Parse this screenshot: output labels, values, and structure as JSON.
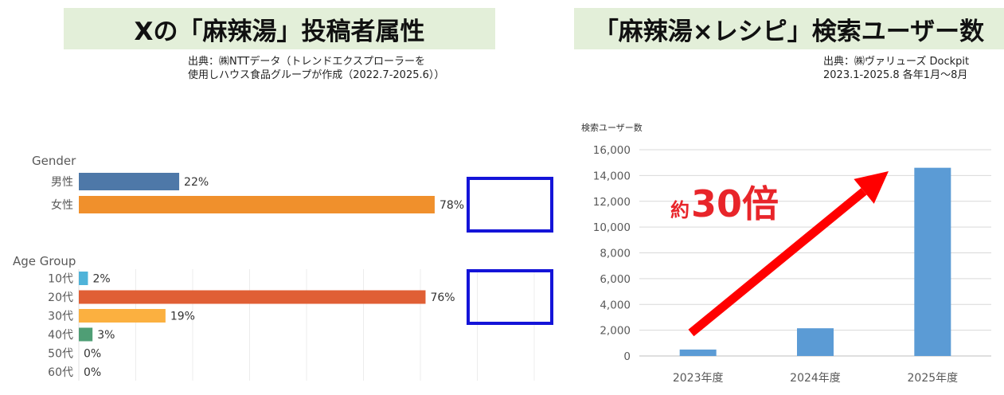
{
  "left": {
    "title": "Xの「麻辣湯」投稿者属性",
    "source_lines": [
      "出典：㈱NTTデータ（トレンドエクスプローラーを",
      "使用しハウス食品グループが作成（2022.7-2025.6））"
    ]
  },
  "right": {
    "title": "「麻辣湯×レシピ」検索ユーザー数",
    "source_lines": [
      "出典：㈱ヴァリューズ Dockpit",
      "2023.1-2025.8 各年1月〜8月"
    ],
    "annotation_prefix": "約",
    "annotation_main": "30倍"
  },
  "chart_data": [
    {
      "type": "bar",
      "orientation": "horizontal",
      "title": "Gender",
      "categories": [
        "男性",
        "女性"
      ],
      "values": [
        22,
        78
      ],
      "value_labels": [
        "22%",
        "78%"
      ],
      "colors": [
        "#4e78a8",
        "#f0902c"
      ],
      "highlight_category": "女性",
      "xlim": [
        0,
        100
      ]
    },
    {
      "type": "bar",
      "orientation": "horizontal",
      "title": "Age Group",
      "categories": [
        "10代",
        "20代",
        "30代",
        "40代",
        "50代",
        "60代"
      ],
      "values": [
        2,
        76,
        19,
        3,
        0,
        0
      ],
      "value_labels": [
        "2%",
        "76%",
        "19%",
        "3%",
        "0%",
        "0%"
      ],
      "colors": [
        "#4fb3d9",
        "#e05f35",
        "#fbb040",
        "#4f9e75",
        "#888888",
        "#888888"
      ],
      "highlight_category": "20代",
      "xlim": [
        0,
        100
      ]
    },
    {
      "type": "bar",
      "orientation": "vertical",
      "title": "",
      "ylabel": "検索ユーザー数",
      "categories": [
        "2023年度",
        "2024年度",
        "2025年度"
      ],
      "values": [
        500,
        2150,
        14600
      ],
      "ylim": [
        0,
        16000
      ],
      "yticks": [
        0,
        2000,
        4000,
        6000,
        8000,
        10000,
        12000,
        14000,
        16000
      ],
      "ytick_labels": [
        "0",
        "2,000",
        "4,000",
        "6,000",
        "8,000",
        "10,000",
        "12,000",
        "14,000",
        "16,000"
      ],
      "grid": true,
      "bar_color": "#5b9bd5",
      "arrow_color": "#ff0000",
      "annotation_color": "#e8252a"
    }
  ]
}
